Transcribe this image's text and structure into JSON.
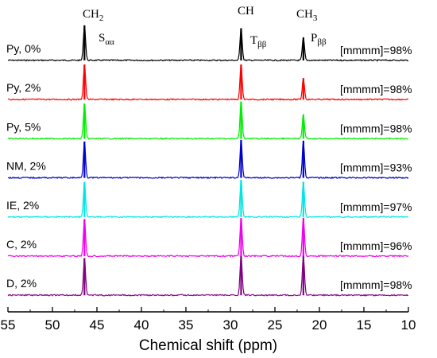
{
  "chart_data": {
    "type": "line",
    "title": "",
    "xlabel": "Chemical shift (ppm)",
    "ylabel": "",
    "xlim": [
      55,
      10
    ],
    "x_reversed": true,
    "x_ticks": [
      55,
      50,
      45,
      40,
      35,
      30,
      25,
      20,
      15,
      10
    ],
    "grid": false,
    "peaks_ppm": [
      46.4,
      28.8,
      21.8
    ],
    "peak_labels": [
      {
        "group": "CH",
        "group_sub": "2",
        "assign": "S",
        "assign_sub": "αα",
        "ppm": 46.4
      },
      {
        "group": "CH",
        "group_sub": "",
        "assign": "T",
        "assign_sub": "ββ",
        "ppm": 28.8
      },
      {
        "group": "CH",
        "group_sub": "3",
        "assign": "P",
        "assign_sub": "ββ",
        "ppm": 21.8
      }
    ],
    "series": [
      {
        "name": "Py, 0%",
        "color": "#000000",
        "tacticity": "[mmmm]=98%",
        "peak_heights": [
          0.85,
          0.78,
          0.55
        ]
      },
      {
        "name": "Py, 2%",
        "color": "#ff0000",
        "tacticity": "[mmmm]=98%",
        "peak_heights": [
          0.85,
          0.85,
          0.52
        ]
      },
      {
        "name": "Py, 5%",
        "color": "#00ee00",
        "tacticity": "[mmmm]=98%",
        "peak_heights": [
          0.85,
          0.9,
          0.58
        ]
      },
      {
        "name": "NM, 2%",
        "color": "#0000cc",
        "tacticity": "[mmmm]=93%",
        "peak_heights": [
          0.88,
          0.92,
          0.9
        ]
      },
      {
        "name": "IE, 2%",
        "color": "#00e5e5",
        "tacticity": "[mmmm]=97%",
        "peak_heights": [
          0.85,
          0.9,
          0.85
        ]
      },
      {
        "name": "C, 2%",
        "color": "#ee00ee",
        "tacticity": "[mmmm]=96%",
        "peak_heights": [
          0.9,
          0.92,
          0.92
        ]
      },
      {
        "name": "D, 2%",
        "color": "#800080",
        "tacticity": "[mmmm]=98%",
        "peak_heights": [
          0.9,
          0.95,
          0.95
        ]
      }
    ]
  }
}
